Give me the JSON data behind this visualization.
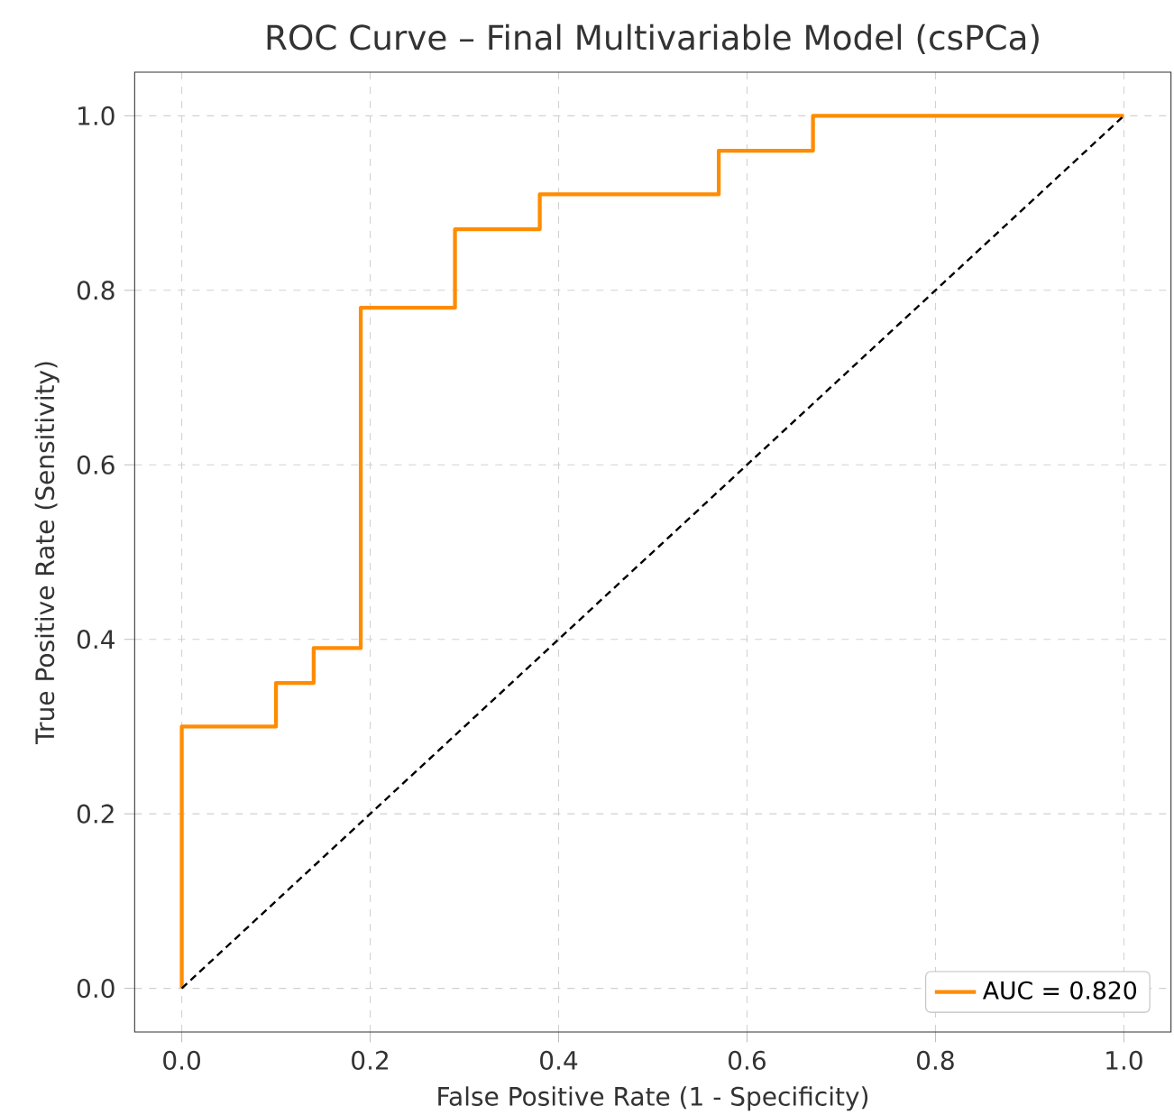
{
  "chart_data": {
    "type": "line",
    "title": "ROC Curve – Final Multivariable Model (csPCa)",
    "xlabel": "False Positive Rate (1 - Specificity)",
    "ylabel": "True Positive Rate (Sensitivity)",
    "xlim": [
      -0.05,
      1.05
    ],
    "ylim": [
      -0.05,
      1.05
    ],
    "xticks": [
      {
        "value": 0,
        "label": "0.0"
      },
      {
        "value": 0.2,
        "label": "0.2"
      },
      {
        "value": 0.4,
        "label": "0.4"
      },
      {
        "value": 0.6,
        "label": "0.6"
      },
      {
        "value": 0.8,
        "label": "0.8"
      },
      {
        "value": 1,
        "label": "1.0"
      }
    ],
    "yticks": [
      {
        "value": 0,
        "label": "0.0"
      },
      {
        "value": 0.2,
        "label": "0.2"
      },
      {
        "value": 0.4,
        "label": "0.4"
      },
      {
        "value": 0.6,
        "label": "0.6"
      },
      {
        "value": 0.8,
        "label": "0.8"
      },
      {
        "value": 1,
        "label": "1.0"
      }
    ],
    "grid": true,
    "legend": "bottom right",
    "series": [
      {
        "name": "AUC = 0.820",
        "color": "#ff8c00",
        "line_style": "solid",
        "x": [
          0,
          0,
          0.1,
          0.1,
          0.14,
          0.14,
          0.19,
          0.19,
          0.29,
          0.29,
          0.38,
          0.38,
          0.57,
          0.57,
          0.67,
          0.67,
          1
        ],
        "values": [
          0,
          0.3,
          0.3,
          0.35,
          0.35,
          0.39,
          0.39,
          0.78,
          0.78,
          0.87,
          0.87,
          0.91,
          0.91,
          0.96,
          0.96,
          1,
          1
        ]
      },
      {
        "type": "line",
        "color": "#000000",
        "line_style": "dashed",
        "x": [
          0,
          1
        ],
        "values": [
          0,
          1
        ]
      }
    ]
  }
}
